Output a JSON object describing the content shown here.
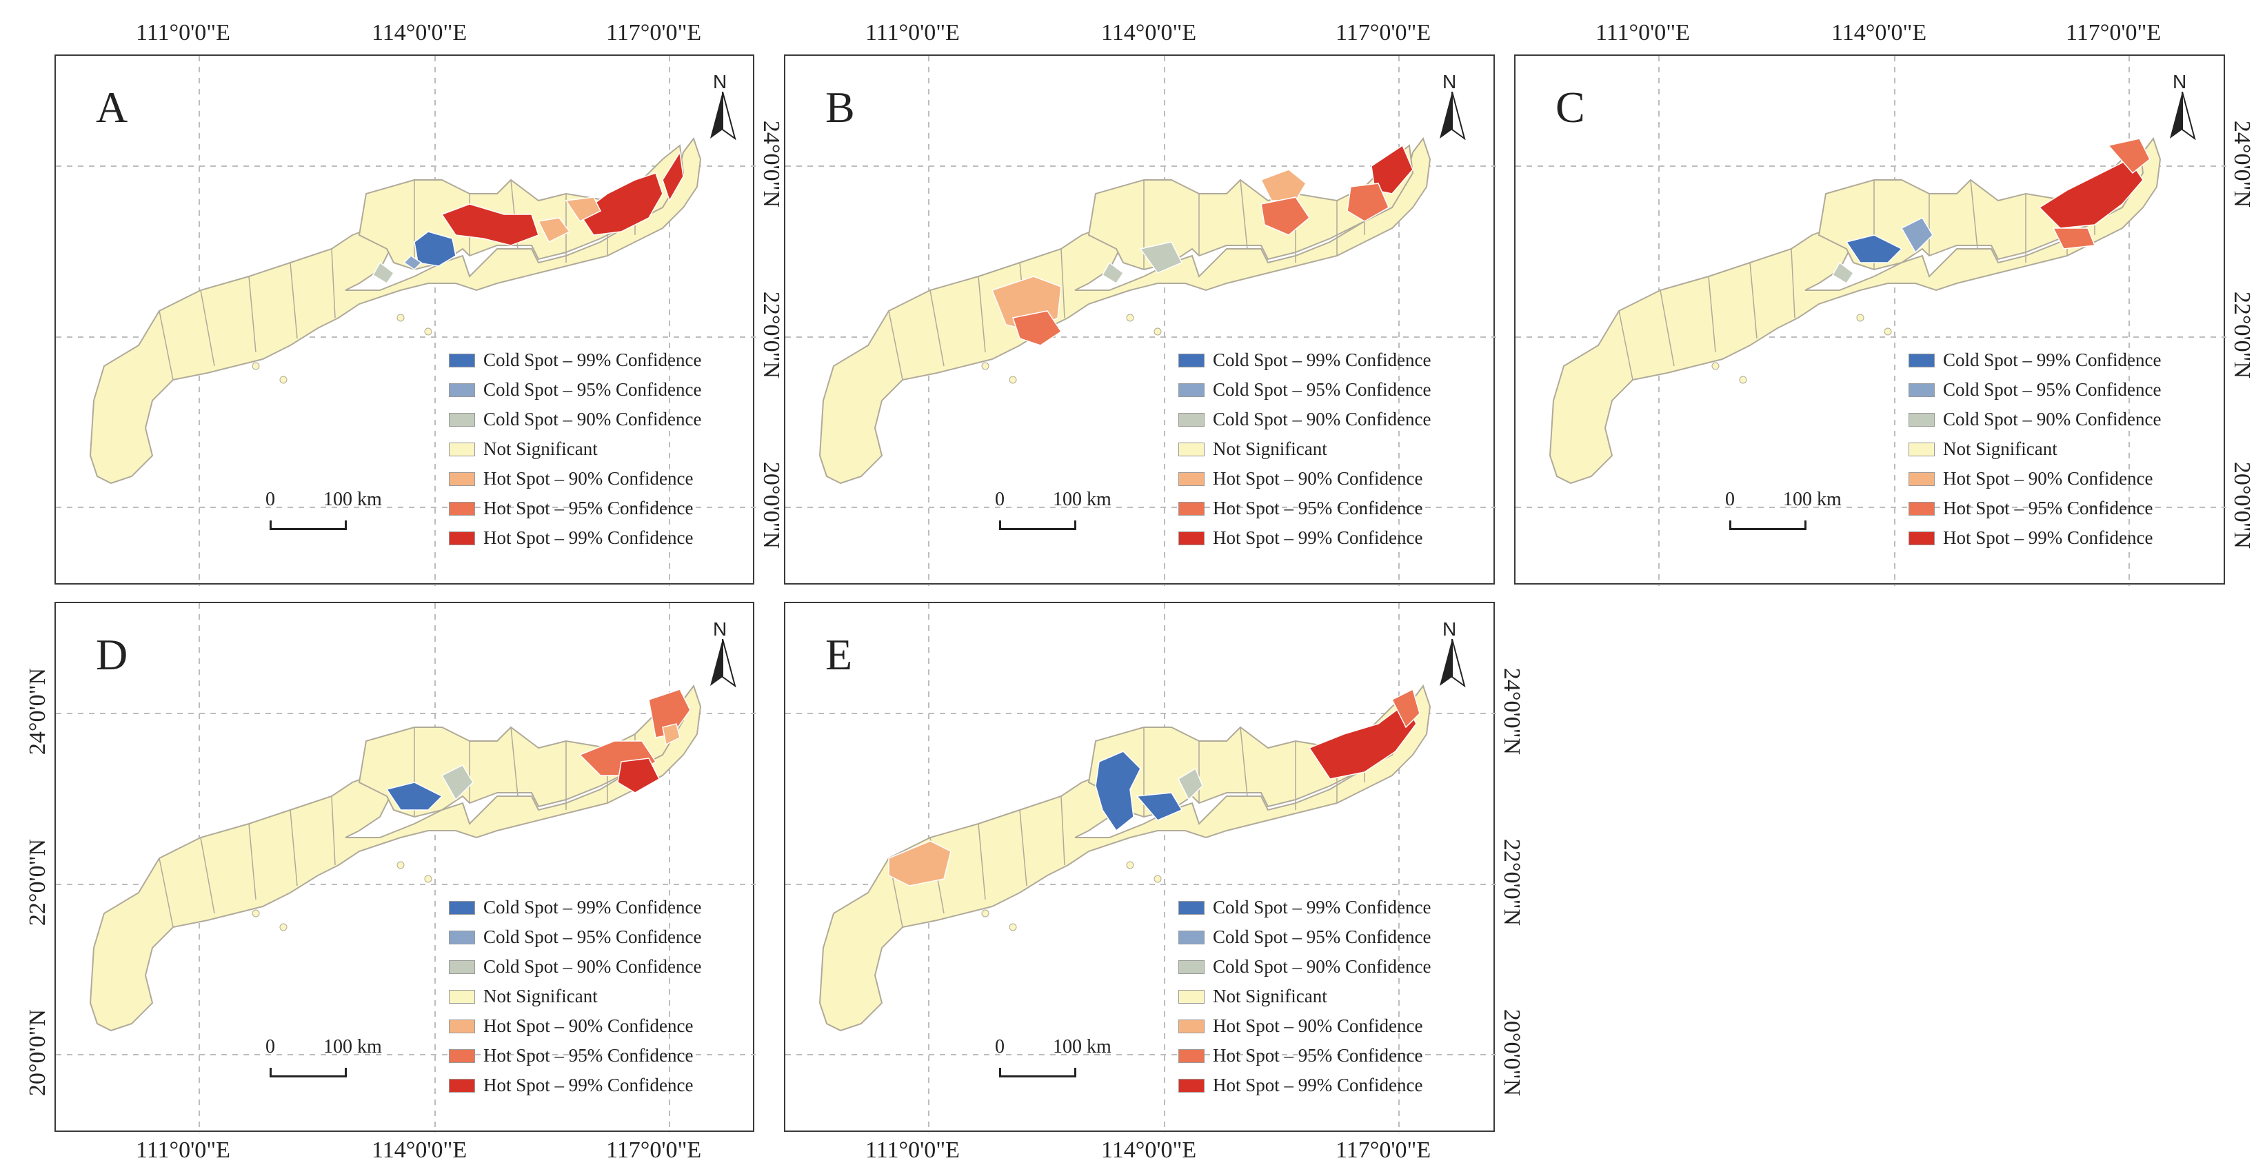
{
  "axes": {
    "lon_ticks": [
      "111°0'0\"E",
      "114°0'0\"E",
      "117°0'0\"E"
    ],
    "lat_ticks": [
      "24°0'0\"N",
      "22°0'0\"N",
      "20°0'0\"N"
    ]
  },
  "legend": {
    "items": [
      {
        "label": "Cold Spot – 99% Confidence",
        "color": "#4472b8"
      },
      {
        "label": "Cold Spot – 95% Confidence",
        "color": "#8aa4c8"
      },
      {
        "label": "Cold Spot – 90% Confidence",
        "color": "#c3cbbc"
      },
      {
        "label": "Not Significant",
        "color": "#fbf5c2"
      },
      {
        "label": "Hot Spot – 90% Confidence",
        "color": "#f5b382"
      },
      {
        "label": "Hot Spot – 95% Confidence",
        "color": "#ec7452"
      },
      {
        "label": "Hot Spot – 99% Confidence",
        "color": "#d73027"
      }
    ]
  },
  "scale_bar": {
    "zero": "0",
    "length_label": "100 km"
  },
  "north_arrow": {
    "label": "N",
    "icon": "north-arrow-icon"
  },
  "colors": {
    "land": "#fbf5c2",
    "border": "#b0aa9a",
    "grid": "#bdbdbd"
  },
  "panels": [
    {
      "id": "A",
      "label": "A"
    },
    {
      "id": "B",
      "label": "B"
    },
    {
      "id": "C",
      "label": "C"
    },
    {
      "id": "D",
      "label": "D"
    },
    {
      "id": "E",
      "label": "E"
    }
  ]
}
